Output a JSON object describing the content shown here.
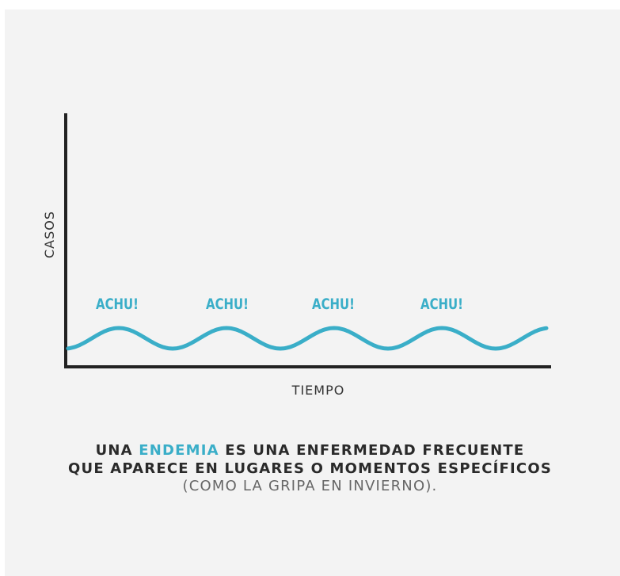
{
  "axes": {
    "y_label": "CASOS",
    "x_label": "TIEMPO"
  },
  "annotations": [
    "ACHU!",
    "ACHU!",
    "ACHU!",
    "ACHU!"
  ],
  "caption": {
    "line1": [
      "UNA",
      "ENDEMIA",
      "ES UNA ENFERMEDAD FRECUENTE"
    ],
    "line2": "QUE APARECE EN LUGARES O MOMENTOS ESPECÍFICOS",
    "line3": "(COMO LA GRIPA EN INVIERNO)."
  }
}
